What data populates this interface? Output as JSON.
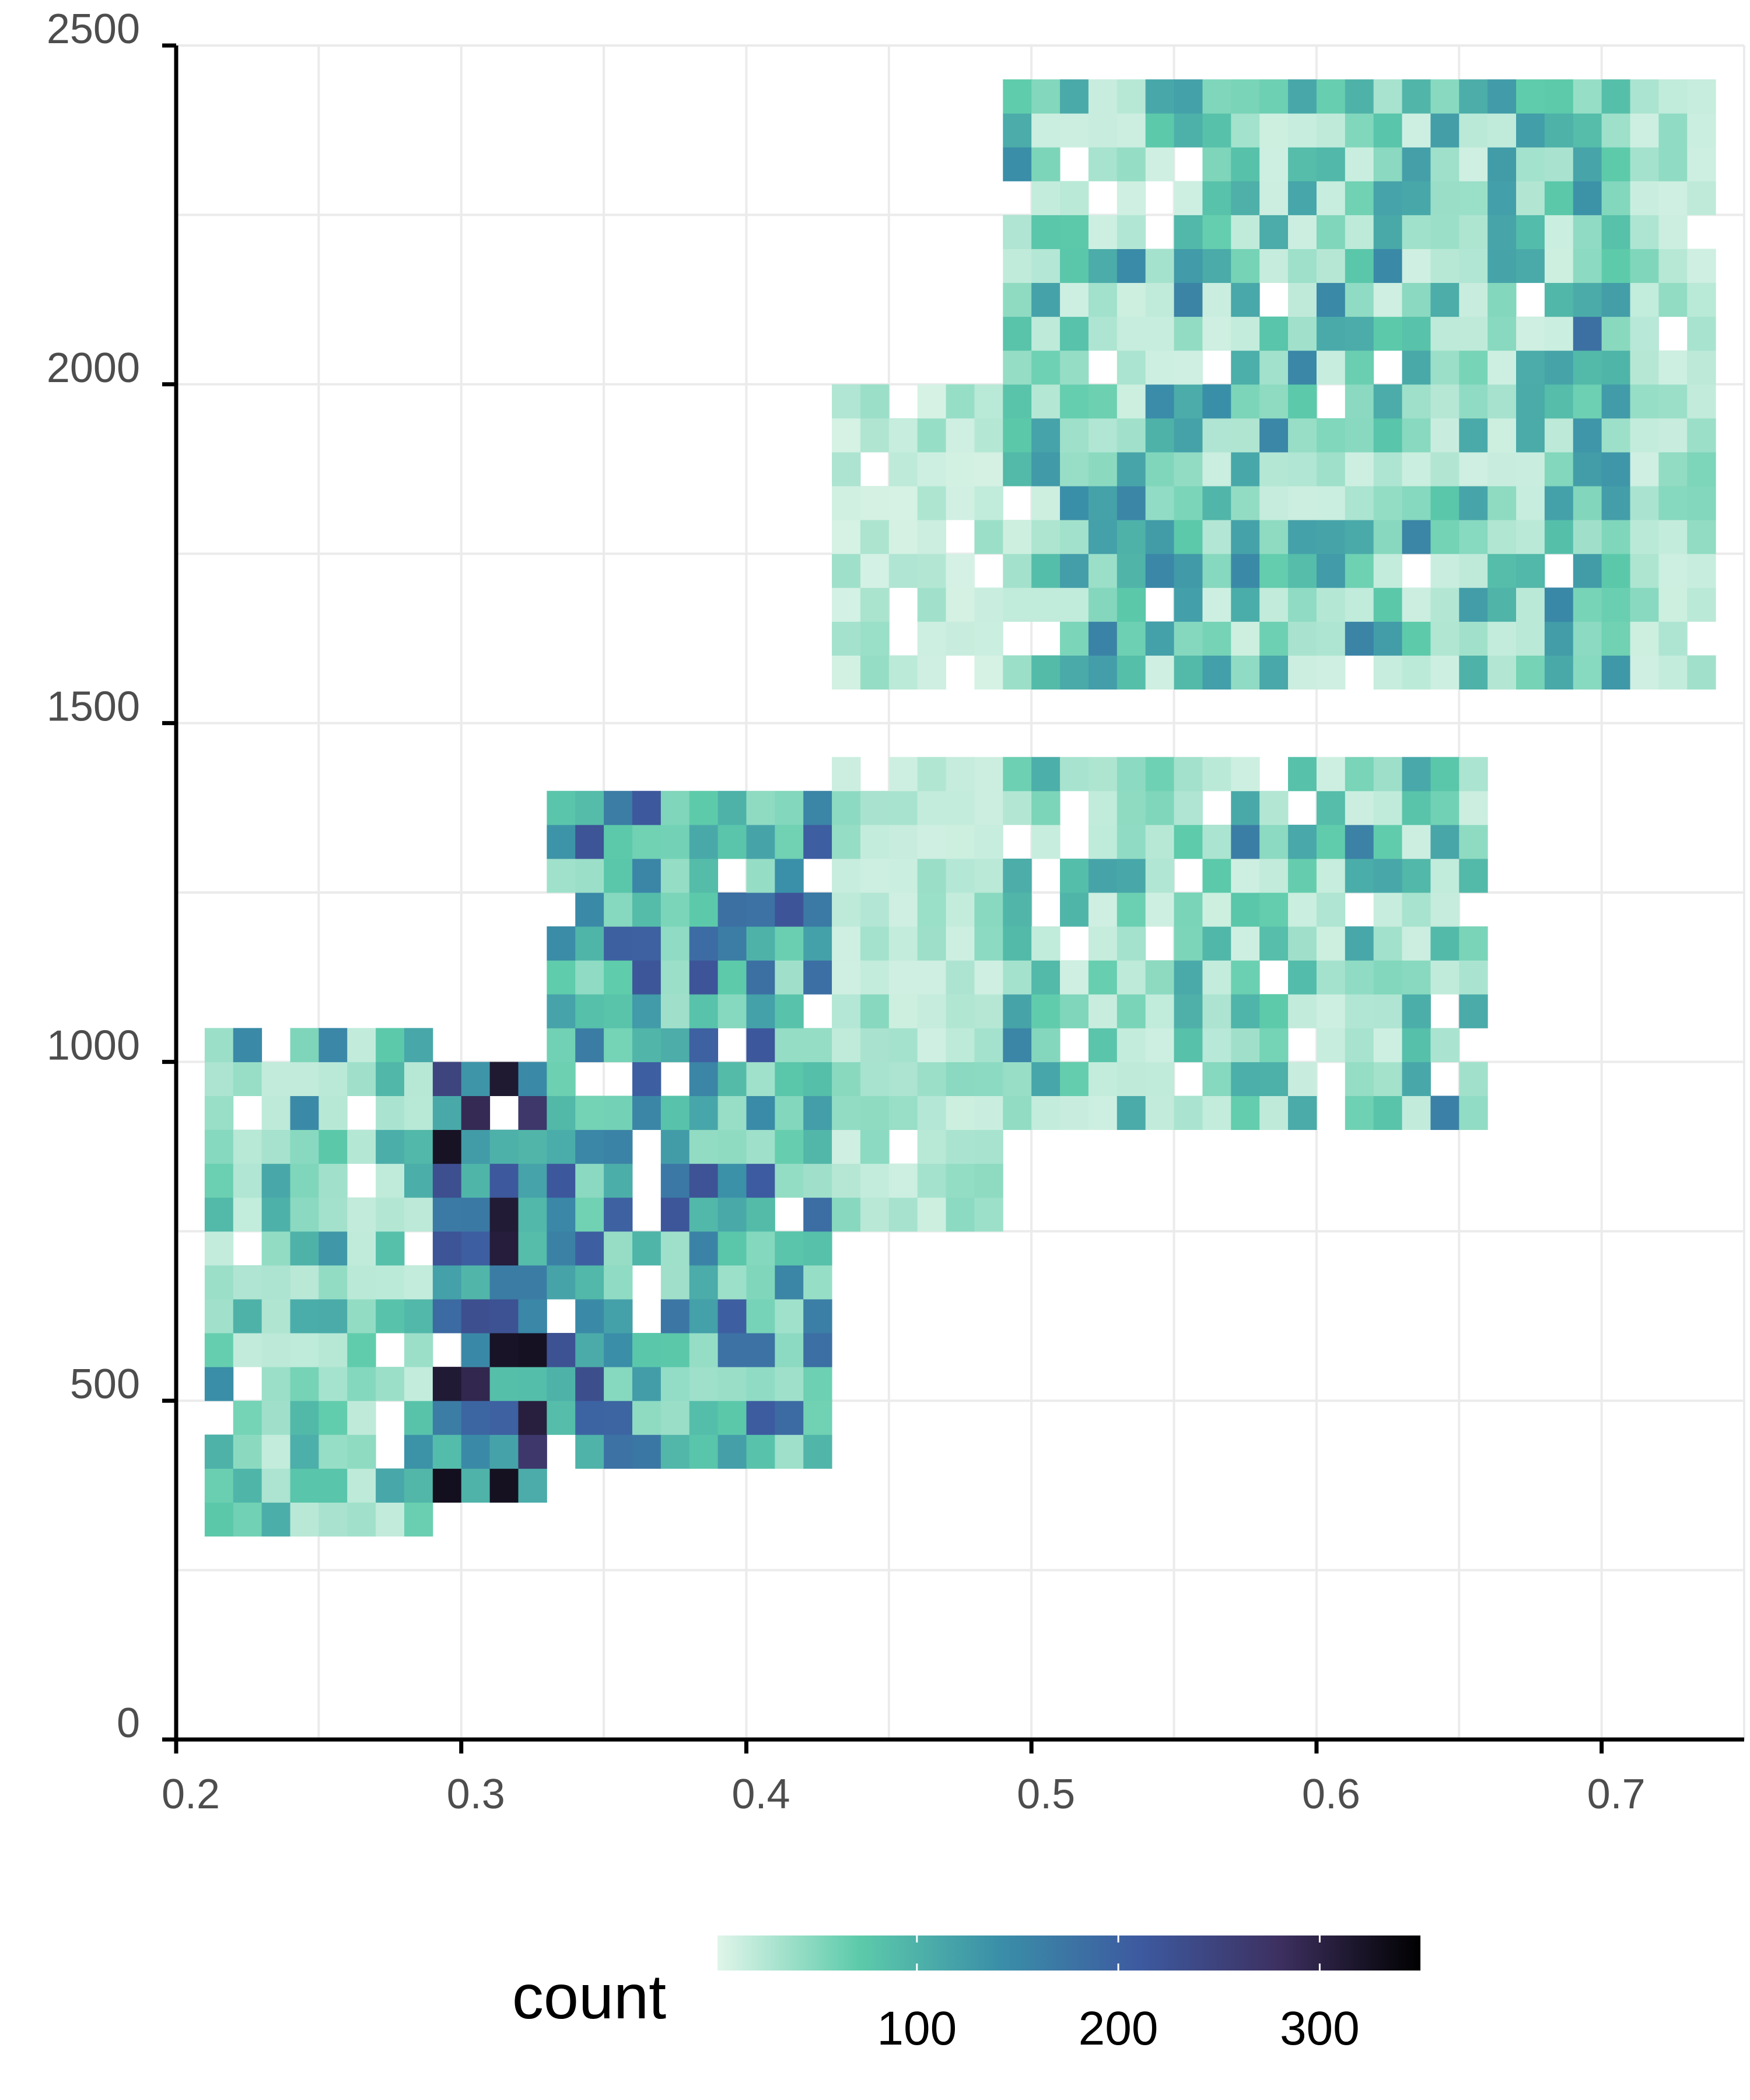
{
  "chart_data": {
    "type": "heatmap",
    "title": "",
    "xlabel": "",
    "ylabel": "",
    "x_ticks": [
      0.2,
      0.3,
      0.4,
      0.5,
      0.6,
      0.7
    ],
    "y_ticks": [
      0,
      500,
      1000,
      1500,
      2000,
      2500
    ],
    "x_tick_labels": [
      "0.2",
      "0.3",
      "0.4",
      "0.5",
      "0.6",
      "0.7"
    ],
    "y_tick_labels": [
      "0",
      "500",
      "1000",
      "1500",
      "2000",
      "2500"
    ],
    "xlim": [
      0.2,
      0.75
    ],
    "ylim": [
      0,
      2500
    ],
    "grid": true,
    "bin_width_x": 0.01,
    "bin_height_y": 50,
    "legend": {
      "title": "count",
      "position": "bottom",
      "range": [
        1,
        350
      ],
      "ticks": [
        100,
        200,
        300
      ],
      "tick_labels": [
        "100",
        "200",
        "300"
      ],
      "colors": [
        "#e0f5ea",
        "#5dcbaa",
        "#3a8fa8",
        "#3d5aa0",
        "#3d3060",
        "#000000"
      ]
    },
    "regions": [
      {
        "x": [
          0.21,
          0.29
        ],
        "y": [
          300,
          1050
        ],
        "count": [
          8,
          90
        ],
        "peak_count": [
          100,
          130
        ]
      },
      {
        "x": [
          0.29,
          0.33
        ],
        "y": [
          350,
          1000
        ],
        "count": [
          60,
          330
        ],
        "peak_count": [
          340,
          350
        ]
      },
      {
        "x": [
          0.33,
          0.43
        ],
        "y": [
          400,
          1400
        ],
        "count": [
          20,
          200
        ],
        "peak_count": [
          180,
          210
        ]
      },
      {
        "x": [
          0.43,
          0.49
        ],
        "y": [
          750,
          1450
        ],
        "count": [
          5,
          30
        ]
      },
      {
        "x": [
          0.49,
          0.66
        ],
        "y": [
          900,
          1450
        ],
        "count": [
          5,
          90
        ],
        "peak_count": [
          120,
          140
        ]
      },
      {
        "x": [
          0.43,
          0.49
        ],
        "y": [
          1550,
          2000
        ],
        "count": [
          3,
          25
        ]
      },
      {
        "x": [
          0.49,
          0.69
        ],
        "y": [
          1550,
          2450
        ],
        "count": [
          5,
          100
        ],
        "peak_count": [
          110,
          130
        ]
      },
      {
        "x": [
          0.69,
          0.71
        ],
        "y": [
          1550,
          2450
        ],
        "count": [
          20,
          110
        ],
        "peak_count": [
          150,
          160
        ]
      },
      {
        "x": [
          0.71,
          0.74
        ],
        "y": [
          1550,
          2450
        ],
        "count": [
          5,
          40
        ]
      }
    ]
  }
}
